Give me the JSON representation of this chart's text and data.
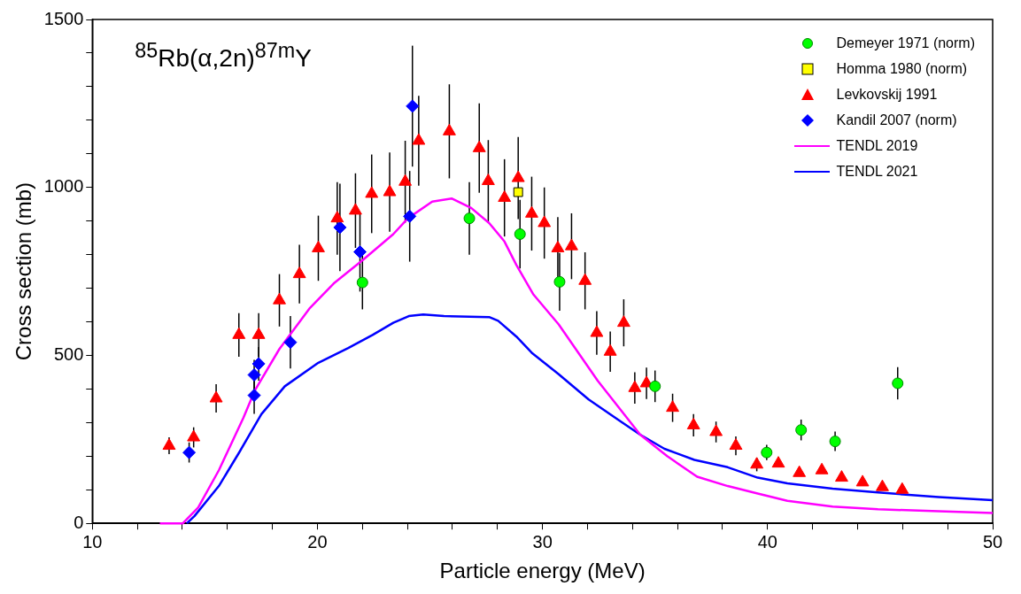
{
  "chart_data": {
    "type": "scatter",
    "title": "$^{85}$Rb(α,2n)$^{87m}$Y",
    "xlabel": "Particle energy (MeV)",
    "ylabel": "Cross section (mb)",
    "xlim": [
      10,
      50
    ],
    "xticks": [
      10,
      {
        "value": 12,
        "label": null
      },
      {
        "value": 14,
        "label": null
      },
      {
        "value": 16,
        "label": null
      },
      {
        "value": 18,
        "label": null
      },
      20,
      {
        "value": 22,
        "label": null
      },
      {
        "value": 24,
        "label": null
      },
      {
        "value": 26,
        "label": null
      },
      {
        "value": 28,
        "label": null
      },
      30,
      {
        "value": 32,
        "label": null
      },
      {
        "value": 34,
        "label": null
      },
      {
        "value": 36,
        "label": null
      },
      {
        "value": 38,
        "label": null
      },
      40,
      {
        "value": 42,
        "label": null
      },
      {
        "value": 44,
        "label": null
      },
      {
        "value": 46,
        "label": null
      },
      {
        "value": 48,
        "label": null
      },
      50
    ],
    "ylim": [
      0,
      1500
    ],
    "yticks": [
      0,
      {
        "value": 100,
        "label": null
      },
      {
        "value": 200,
        "label": null
      },
      {
        "value": 300,
        "label": null
      },
      {
        "value": 400,
        "label": null
      },
      500,
      {
        "value": 600,
        "label": null
      },
      {
        "value": 700,
        "label": null
      },
      {
        "value": 800,
        "label": null
      },
      {
        "value": 900,
        "label": null
      },
      1000,
      {
        "value": 1100,
        "label": null
      },
      {
        "value": 1200,
        "label": null
      },
      {
        "value": 1300,
        "label": null
      },
      {
        "value": 1400,
        "label": null
      },
      1500
    ],
    "grid": false,
    "legend": "top right",
    "series": [
      {
        "name": "Demeyer 1971 (norm)",
        "marker": "circle",
        "color": "#00ff00",
        "x": [
          22.0,
          26.75,
          29.0,
          30.76,
          35.0,
          39.96,
          41.49,
          43.0,
          45.78
        ],
        "values": [
          717,
          908,
          861,
          719,
          408,
          211,
          278,
          244,
          417
        ],
        "errors": [
          80,
          108,
          102,
          86,
          47,
          23,
          31,
          29,
          48
        ]
      },
      {
        "name": "Homma 1980 (norm)",
        "marker": "square",
        "color": "#ffff00",
        "x": [
          28.92
        ],
        "values": [
          986
        ]
      },
      {
        "name": "Levkovskij 1991",
        "marker": "triangle",
        "color": "#ff0000",
        "x": [
          13.41,
          14.5,
          15.5,
          16.51,
          17.39,
          18.31,
          19.2,
          20.04,
          20.88,
          21.69,
          22.41,
          23.21,
          23.9,
          24.5,
          25.86,
          27.19,
          27.59,
          28.31,
          28.92,
          29.52,
          30.08,
          30.68,
          31.29,
          31.89,
          32.41,
          33.01,
          33.61,
          34.1,
          34.62,
          35.78,
          36.71,
          37.71,
          38.59,
          39.52,
          40.48,
          41.41,
          42.41,
          43.29,
          44.22,
          45.1,
          45.98
        ],
        "values": [
          231,
          256,
          372,
          561,
          561,
          664,
          742,
          819,
          908,
          931,
          981,
          986,
          1017,
          1139,
          1167,
          1117,
          1019,
          969,
          1028,
          922,
          894,
          819,
          825,
          722,
          567,
          511,
          597,
          403,
          417,
          344,
          292,
          272,
          231,
          175,
          178,
          150,
          158,
          136,
          122,
          108,
          100
        ],
        "errors": [
          25,
          30,
          42,
          65,
          65,
          78,
          87,
          97,
          108,
          111,
          117,
          118,
          122,
          134,
          140,
          133,
          122,
          115,
          122,
          110,
          106,
          93,
          98,
          85,
          65,
          60,
          70,
          47,
          47,
          42,
          33,
          31,
          28,
          20,
          null,
          null,
          null,
          null,
          null,
          null,
          null
        ]
      },
      {
        "name": "Kandil 2007 (norm)",
        "marker": "diamond",
        "color": "#0000ff",
        "x": [
          14.3,
          17.19,
          17.19,
          17.39,
          18.8,
          21.0,
          21.89,
          24.1,
          24.22
        ],
        "values": [
          211,
          381,
          442,
          475,
          539,
          881,
          808,
          914,
          1242
        ],
        "errors": [
          30,
          55,
          45,
          50,
          78,
          130,
          118,
          135,
          180
        ]
      },
      {
        "name": "TENDL 2019",
        "type": "line",
        "marker": "none",
        "color": "#ff00ff",
        "x": [
          13.0,
          14.02,
          14.7,
          15.62,
          16.71,
          17.23,
          18.31,
          19.64,
          20.72,
          22.05,
          23.37,
          24.02,
          25.1,
          25.98,
          26.83,
          27.63,
          28.31,
          28.84,
          29.6,
          30.72,
          32.45,
          34.34,
          35.54,
          36.87,
          38.23,
          39.56,
          40.88,
          42.89,
          44.9,
          47.6,
          50.0
        ],
        "values": [
          0,
          0,
          47,
          158,
          314,
          397,
          519,
          639,
          714,
          786,
          861,
          908,
          958,
          967,
          939,
          894,
          839,
          769,
          681,
          592,
          425,
          264,
          200,
          139,
          111,
          89,
          67,
          50,
          42,
          36,
          31
        ]
      },
      {
        "name": "TENDL 2021",
        "type": "line",
        "marker": "none",
        "color": "#0000ff",
        "x": [
          14.2,
          14.54,
          15.62,
          16.55,
          17.51,
          18.55,
          20.04,
          21.37,
          22.45,
          23.37,
          24.06,
          24.7,
          25.62,
          27.63,
          28.03,
          28.84,
          29.52,
          30.72,
          32.05,
          33.41,
          34.34,
          35.42,
          36.75,
          38.23,
          39.56,
          40.88,
          42.89,
          44.9,
          47.6,
          50.0
        ],
        "values": [
          0,
          22,
          111,
          214,
          325,
          408,
          478,
          522,
          561,
          597,
          617,
          622,
          617,
          614,
          603,
          556,
          508,
          444,
          369,
          306,
          264,
          222,
          189,
          167,
          136,
          119,
          103,
          92,
          78,
          69
        ]
      }
    ]
  }
}
